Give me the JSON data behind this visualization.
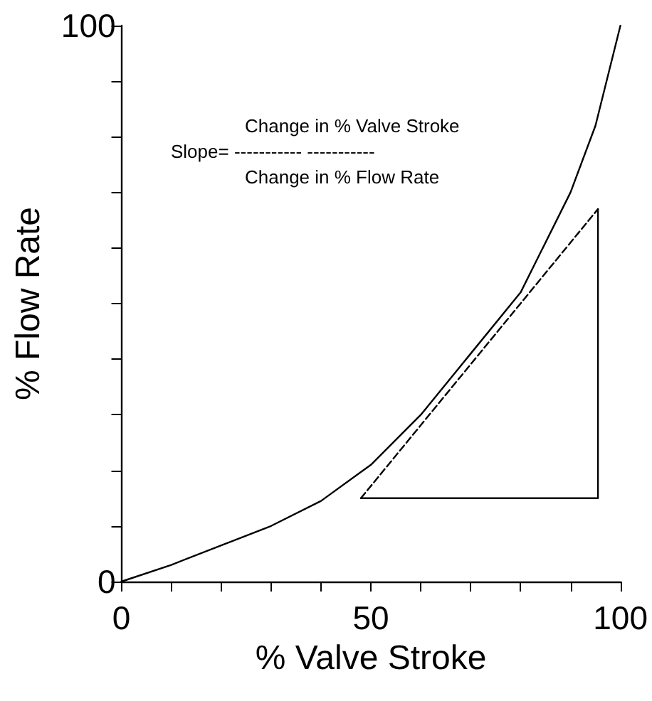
{
  "chart_data": {
    "type": "line",
    "xlabel": "% Valve Stroke",
    "ylabel": "% Flow Rate",
    "annotations": [
      "Change in % Valve Stroke",
      "Slope= ----------- -----------",
      "Change in % Flow Rate"
    ],
    "xlim": [
      0,
      100
    ],
    "ylim": [
      0,
      100
    ],
    "xticks": [
      0,
      {
        "value": 10,
        "label": null
      },
      {
        "value": 20,
        "label": null
      },
      {
        "value": 30,
        "label": null
      },
      {
        "value": 40,
        "label": null
      },
      50,
      {
        "value": 60,
        "label": null
      },
      {
        "value": 70,
        "label": null
      },
      {
        "value": 80,
        "label": null
      },
      {
        "value": 90,
        "label": null
      },
      100
    ],
    "yticks": [
      0,
      {
        "value": 10,
        "label": null
      },
      {
        "value": 20,
        "label": null
      },
      {
        "value": 30,
        "label": null
      },
      {
        "value": 40,
        "label": null
      },
      {
        "value": 50,
        "label": null
      },
      {
        "value": 60,
        "label": null
      },
      {
        "value": 70,
        "label": null
      },
      {
        "value": 80,
        "label": null
      },
      {
        "value": 90,
        "label": null
      },
      100
    ],
    "grid": false,
    "marker": "none",
    "series": [
      {
        "color": "#000000",
        "line_style": "solid",
        "x": [
          0,
          10,
          20,
          30,
          40,
          50,
          60,
          70,
          80,
          90,
          95,
          100
        ],
        "values": [
          0,
          3,
          6.5,
          10,
          14.5,
          21,
          30,
          41,
          52,
          70,
          82,
          100
        ]
      },
      {
        "color": "#000000",
        "line_style": "dashed",
        "x": [
          48,
          95.5
        ],
        "values": [
          15,
          67
        ]
      },
      {
        "color": "#000000",
        "line_style": "solid",
        "x": [
          48,
          95.5,
          95.5
        ],
        "values": [
          15,
          15,
          67
        ]
      }
    ]
  }
}
